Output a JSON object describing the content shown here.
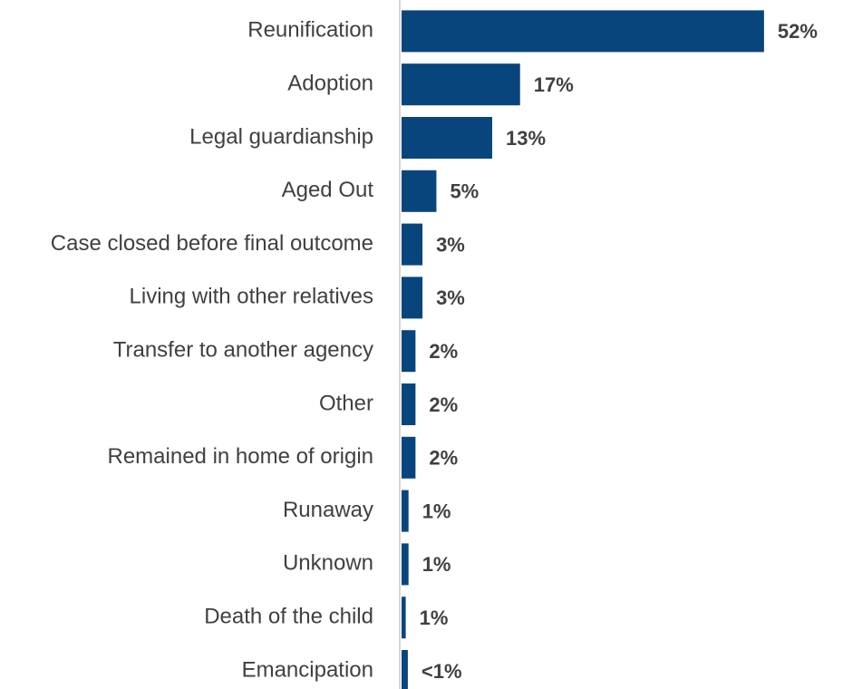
{
  "chart_data": {
    "type": "bar",
    "orientation": "horizontal",
    "categories": [
      "Reunification",
      "Adoption",
      "Legal guardianship",
      "Aged Out",
      "Case closed before final outcome",
      "Living with other relatives",
      "Transfer to another agency",
      "Other",
      "Remained in home of origin",
      "Runaway",
      "Unknown",
      "Death of the child",
      "Emancipation"
    ],
    "values": [
      52,
      17,
      13,
      5,
      3,
      3,
      2,
      2,
      2,
      1,
      1,
      0.6,
      0.9
    ],
    "value_labels": [
      "52%",
      "17%",
      "13%",
      "5%",
      "3%",
      "3%",
      "2%",
      "2%",
      "2%",
      "1%",
      "1%",
      "1%",
      "<1%"
    ],
    "color": "#07457c"
  }
}
